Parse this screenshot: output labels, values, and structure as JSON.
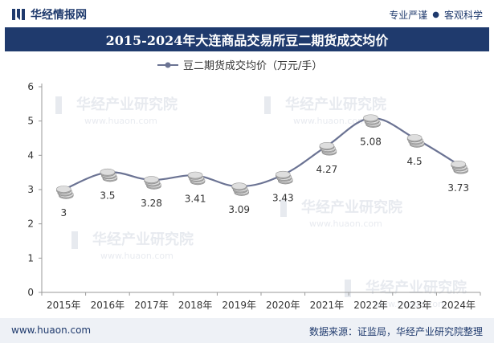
{
  "header": {
    "brand": "华经情报网",
    "tagline_left": "专业严谨",
    "tagline_sep": "●",
    "tagline_right": "客观科学"
  },
  "title": "2015-2024年大连商品交易所豆二期货成交均价",
  "footer": {
    "site": "www.huaon.com",
    "source": "数据来源：证监局，华经产业研究院整理"
  },
  "watermark": {
    "cn": "华经产业研究院",
    "en": "www.huaon.com"
  },
  "colors": {
    "brand": "#1f3a6d",
    "line": "#6b7393",
    "coin": "#c8c8c8"
  },
  "chart_data": {
    "type": "line",
    "title": "2015-2024年大连商品交易所豆二期货成交均价",
    "categories": [
      "2015年",
      "2016年",
      "2017年",
      "2018年",
      "2019年",
      "2020年",
      "2021年",
      "2022年",
      "2023年",
      "2024年"
    ],
    "series": [
      {
        "name": "豆二期货成交均价（万元/手）",
        "values": [
          3,
          3.5,
          3.28,
          3.41,
          3.09,
          3.43,
          4.27,
          5.08,
          4.5,
          3.73
        ]
      }
    ],
    "data_labels": [
      "3",
      "3.5",
      "3.28",
      "3.41",
      "3.09",
      "3.43",
      "4.27",
      "5.08",
      "4.5",
      "3.73"
    ],
    "ylim": [
      0,
      6
    ],
    "yticks": [
      "0",
      "1",
      "2",
      "3",
      "4",
      "5",
      "6"
    ],
    "xlabel": "",
    "ylabel": "",
    "legend_position": "top-center",
    "grid": false
  }
}
